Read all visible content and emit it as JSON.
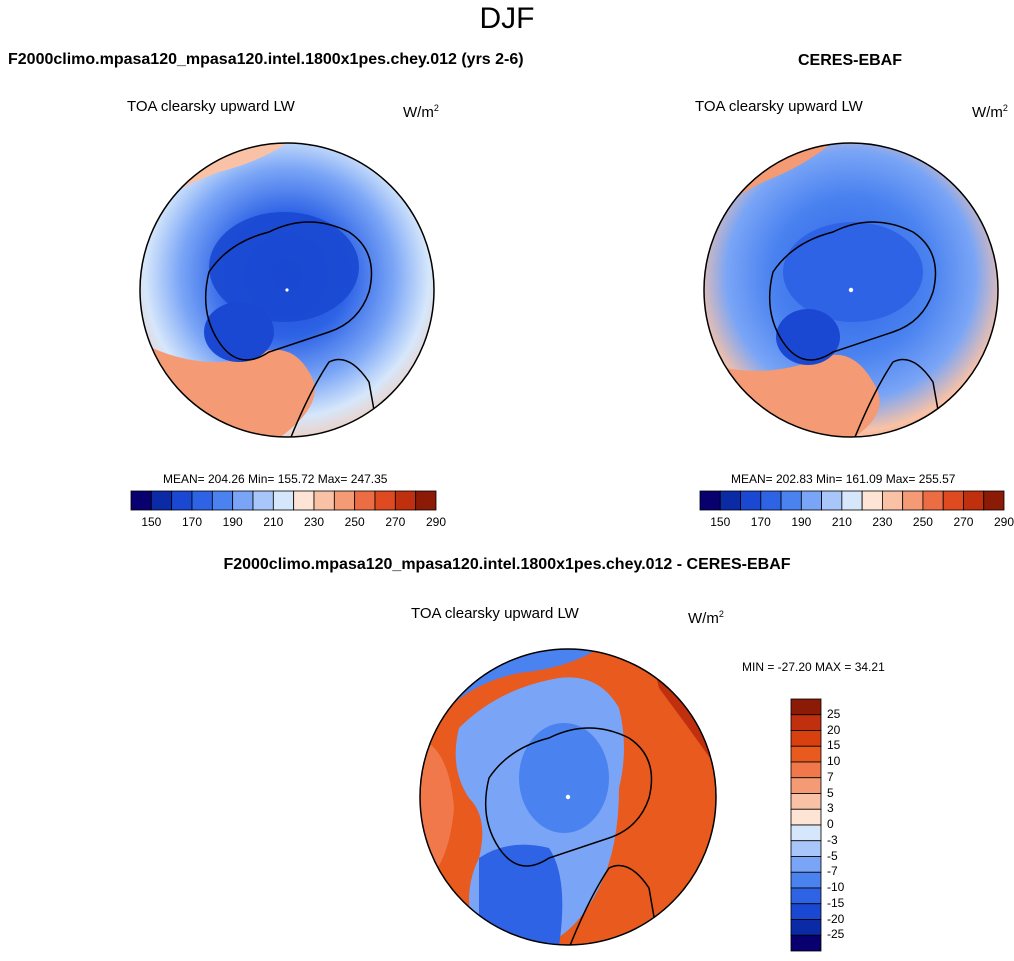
{
  "header": {
    "season": "DJF"
  },
  "panels": [
    {
      "id": "model",
      "title": "F2000climo.mpasa120_mpasa120.intel.1800x1pes.chey.012 (yrs 2-6)",
      "variable": "TOA clearsky upward LW",
      "units_base": "W/m",
      "units_exp": "2",
      "stats_text": "MEAN= 204.26  Min= 155.72  Max= 247.35",
      "mean": 204.26,
      "min": 155.72,
      "max": 247.35
    },
    {
      "id": "obs",
      "title": "CERES-EBAF",
      "variable": "TOA clearsky upward LW",
      "units_base": "W/m",
      "units_exp": "2",
      "stats_text": "MEAN= 202.83  Min= 161.09  Max= 255.57",
      "mean": 202.83,
      "min": 161.09,
      "max": 255.57
    },
    {
      "id": "diff",
      "title": "F2000climo.mpasa120_mpasa120.intel.1800x1pes.chey.012 - CERES-EBAF",
      "variable": "TOA clearsky upward LW",
      "units_base": "W/m",
      "units_exp": "2",
      "stats_text": "MIN = -27.20 MAX =  34.21",
      "min": -27.2,
      "max": 34.21
    }
  ],
  "colorbar_abs": {
    "colors": [
      "#08006e",
      "#0a2aa6",
      "#1a48d2",
      "#2e63e6",
      "#4a82f0",
      "#7aa5f6",
      "#a9c6fa",
      "#d6e7fb",
      "#fde4d4",
      "#f9c2a6",
      "#f49a74",
      "#ec6d44",
      "#e04a20",
      "#c0300e",
      "#8b1a06"
    ],
    "tick_labels": [
      "150",
      "170",
      "190",
      "210",
      "230",
      "250",
      "270",
      "290"
    ]
  },
  "colorbar_diff": {
    "colors": [
      "#8b1a06",
      "#c0300e",
      "#d8400f",
      "#e85a1e",
      "#f0784a",
      "#f49a74",
      "#f9c2a6",
      "#fde4d4",
      "#d6e7fb",
      "#a9c6fa",
      "#7aa5f6",
      "#4a82f0",
      "#2e63e6",
      "#1a48d2",
      "#0a2aa6",
      "#08006e"
    ],
    "tick_labels": [
      "25",
      "20",
      "15",
      "10",
      "7",
      "5",
      "3",
      "0",
      "-3",
      "-5",
      "-7",
      "-10",
      "-15",
      "-20",
      "-25"
    ]
  },
  "chart_data": {
    "type": "heatmap",
    "title": "DJF",
    "projection": "north-polar-stereographic",
    "panels": [
      "F2000climo.mpasa120_mpasa120.intel.1800x1pes.chey.012 (yrs 2-6)",
      "CERES-EBAF",
      "F2000climo.mpasa120_mpasa120.intel.1800x1pes.chey.012 - CERES-EBAF"
    ],
    "abs_levels": [
      150,
      160,
      170,
      180,
      190,
      200,
      210,
      220,
      230,
      240,
      250,
      260,
      270,
      280,
      290
    ],
    "diff_levels": [
      -25,
      -20,
      -15,
      -10,
      -7,
      -5,
      -3,
      0,
      3,
      5,
      7,
      10,
      15,
      20,
      25
    ]
  }
}
